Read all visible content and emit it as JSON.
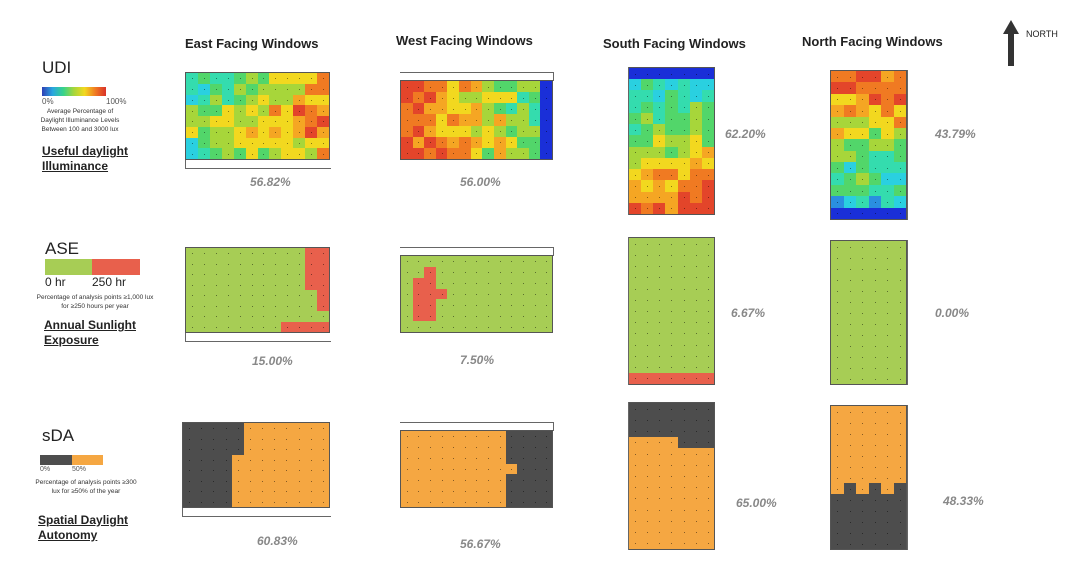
{
  "columns": [
    "East Facing Windows",
    "West Facing Windows",
    "South Facing Windows",
    "North Facing Windows"
  ],
  "north_label": "NORTH",
  "metrics": [
    {
      "abbr": "UDI",
      "legend_min": "0%",
      "legend_max": "100%",
      "desc": "Average Percentage of Daylight Illuminance Levels Between 100 and 3000 lux",
      "name_1": "Useful daylight",
      "name_2": "Illuminance",
      "values": [
        "56.82%",
        "56.00%",
        "62.20%",
        "43.79%"
      ]
    },
    {
      "abbr": "ASE",
      "legend_min": "0 hr",
      "legend_max": "250 hr",
      "desc": "Percentage of analysis points ≥1,000 lux for ≥250 hours per year",
      "name_1": "Annual Sunlight",
      "name_2": "Exposure",
      "values": [
        "15.00%",
        "7.50%",
        "6.67%",
        "0.00%"
      ]
    },
    {
      "abbr": "sDA",
      "legend_min": "0%",
      "legend_max": "50%",
      "desc": "Percentage of analysis points ≥300 lux for ≥50% of the year",
      "name_1": "Spatial Daylight",
      "name_2": "Autonomy",
      "values": [
        "60.83%",
        "56.67%",
        "65.00%",
        "48.33%"
      ]
    }
  ],
  "colors": {
    "ase_pass": "#a7cd55",
    "ase_fail": "#e8604c",
    "sda_pass": "#f5a742",
    "sda_fail": "#4d4d4d"
  }
}
